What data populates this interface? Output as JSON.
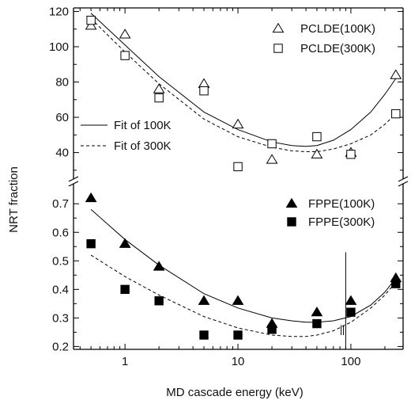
{
  "chart_data": {
    "type": "scatter",
    "xlabel": "MD cascade energy (keV)",
    "ylabel": "NRT fraction",
    "x_scale": "log",
    "xlim": [
      0.35,
      290
    ],
    "x_ticks": [
      {
        "value": 1,
        "label": "1"
      },
      {
        "value": 10,
        "label": "10"
      },
      {
        "value": 100,
        "label": "100"
      }
    ],
    "panels": [
      {
        "name": "upper",
        "ylim": [
          25,
          122
        ],
        "y_ticks": [
          {
            "value": 40,
            "label": "40"
          },
          {
            "value": 60,
            "label": "60"
          },
          {
            "value": 80,
            "label": "80"
          },
          {
            "value": 100,
            "label": "100"
          },
          {
            "value": 120,
            "label": "120"
          }
        ],
        "series": [
          {
            "name": "PCLDE(100K)",
            "marker": "open-triangle",
            "x": [
              0.5,
              1,
              2,
              5,
              10,
              20,
              50,
              100,
              250
            ],
            "y": [
              112,
              107,
              76,
              79,
              56,
              36,
              39,
              40,
              84
            ]
          },
          {
            "name": "PCLDE(300K)",
            "marker": "open-square",
            "x": [
              0.5,
              1,
              2,
              5,
              10,
              20,
              50,
              100,
              250
            ],
            "y": [
              115,
              95,
              71,
              75,
              32,
              45,
              49,
              39,
              62
            ]
          }
        ],
        "fits": [
          {
            "name": "Fit of 100K",
            "style": "solid",
            "x": [
              0.5,
              1,
              2,
              5,
              10,
              20,
              30,
              40,
              50,
              70,
              100,
              150,
              200,
              250
            ],
            "y": [
              119,
              101,
              83,
              63,
              53,
              46,
              44,
              43.5,
              44,
              47,
              53,
              63,
              73,
              82
            ]
          },
          {
            "name": "Fit of 300K",
            "style": "dashed",
            "x": [
              0.5,
              1,
              2,
              5,
              10,
              20,
              30,
              40,
              50,
              70,
              100,
              150,
              200,
              250
            ],
            "y": [
              116,
              97,
              79,
              59,
              49,
              43,
              41,
              40.5,
              40.5,
              42,
              45,
              50,
              56,
              62
            ]
          }
        ]
      },
      {
        "name": "lower",
        "ylim": [
          0.19,
          0.77
        ],
        "y_ticks": [
          {
            "value": 0.2,
            "label": "0.2"
          },
          {
            "value": 0.3,
            "label": "0.3"
          },
          {
            "value": 0.4,
            "label": "0.4"
          },
          {
            "value": 0.5,
            "label": "0.5"
          },
          {
            "value": 0.6,
            "label": "0.6"
          },
          {
            "value": 0.7,
            "label": "0.7"
          }
        ],
        "series": [
          {
            "name": "FPPE(100K)",
            "marker": "filled-triangle",
            "x": [
              0.5,
              1,
              2,
              5,
              10,
              20,
              50,
              100,
              250
            ],
            "y": [
              0.72,
              0.56,
              0.48,
              0.36,
              0.36,
              0.28,
              0.32,
              0.36,
              0.44
            ]
          },
          {
            "name": "FPPE(300K)",
            "marker": "filled-square",
            "x": [
              0.5,
              1,
              2,
              5,
              10,
              20,
              50,
              100,
              250
            ],
            "y": [
              0.56,
              0.4,
              0.36,
              0.24,
              0.24,
              0.26,
              0.28,
              0.32,
              0.42
            ]
          }
        ],
        "fits": [
          {
            "name": "",
            "style": "solid",
            "x": [
              0.5,
              1,
              2,
              5,
              10,
              20,
              30,
              40,
              50,
              70,
              100,
              150,
              200,
              250
            ],
            "y": [
              0.68,
              0.575,
              0.485,
              0.385,
              0.335,
              0.3,
              0.29,
              0.285,
              0.285,
              0.29,
              0.305,
              0.345,
              0.39,
              0.44
            ]
          },
          {
            "name": "",
            "style": "dashed",
            "x": [
              0.5,
              1,
              2,
              5,
              10,
              20,
              30,
              40,
              50,
              70,
              100,
              150,
              200,
              250
            ],
            "y": [
              0.52,
              0.445,
              0.38,
              0.305,
              0.265,
              0.24,
              0.235,
              0.235,
              0.24,
              0.255,
              0.285,
              0.335,
              0.38,
              0.425
            ]
          }
        ]
      }
    ],
    "legend_upper": {
      "placement": "top-right",
      "entries": [
        "PCLDE(100K)",
        "PCLDE(300K)"
      ]
    },
    "legend_fits": {
      "placement": "middle-left",
      "entries": [
        "Fit of 100K",
        "Fit of 300K"
      ]
    },
    "legend_lower": {
      "placement": "upper-right",
      "entries": [
        "FPPE(100K)",
        "FPPE(300K)"
      ]
    }
  }
}
